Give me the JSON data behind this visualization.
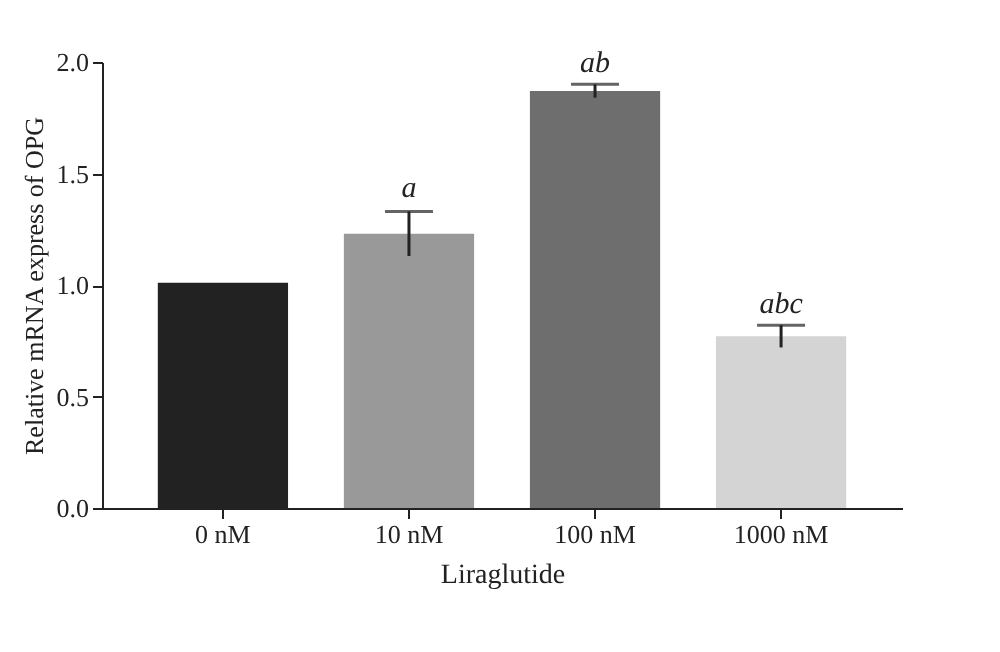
{
  "chart_data": {
    "type": "bar",
    "xlabel": "Liraglutide",
    "ylabel": "Relative mRNA express of OPG",
    "categories": [
      "0 nM",
      "10 nM",
      "100 nM",
      "1000 nM"
    ],
    "values": [
      1.01,
      1.23,
      1.87,
      0.77
    ],
    "colors": [
      "#222222",
      "#999999",
      "#6e6e6e",
      "#d4d4d4"
    ],
    "errors": [
      null,
      0.1,
      0.03,
      0.05
    ],
    "annotations": [
      {
        "text": "a",
        "x": "10 nM",
        "y": 1.34
      },
      {
        "text": "ab",
        "x": "100 nM",
        "y": 1.9
      },
      {
        "text": "abc",
        "x": "1000 nM",
        "y": 0.82
      }
    ],
    "ylim": [
      0,
      2.0
    ],
    "yticks": [
      {
        "value": 0,
        "label": "0.0"
      },
      {
        "value": 0.5,
        "label": "0.5"
      },
      {
        "value": 1,
        "label": "1.0"
      },
      {
        "value": 1.5,
        "label": "1.5"
      },
      {
        "value": 2,
        "label": "2.0"
      }
    ],
    "grid": false,
    "legend": false
  }
}
